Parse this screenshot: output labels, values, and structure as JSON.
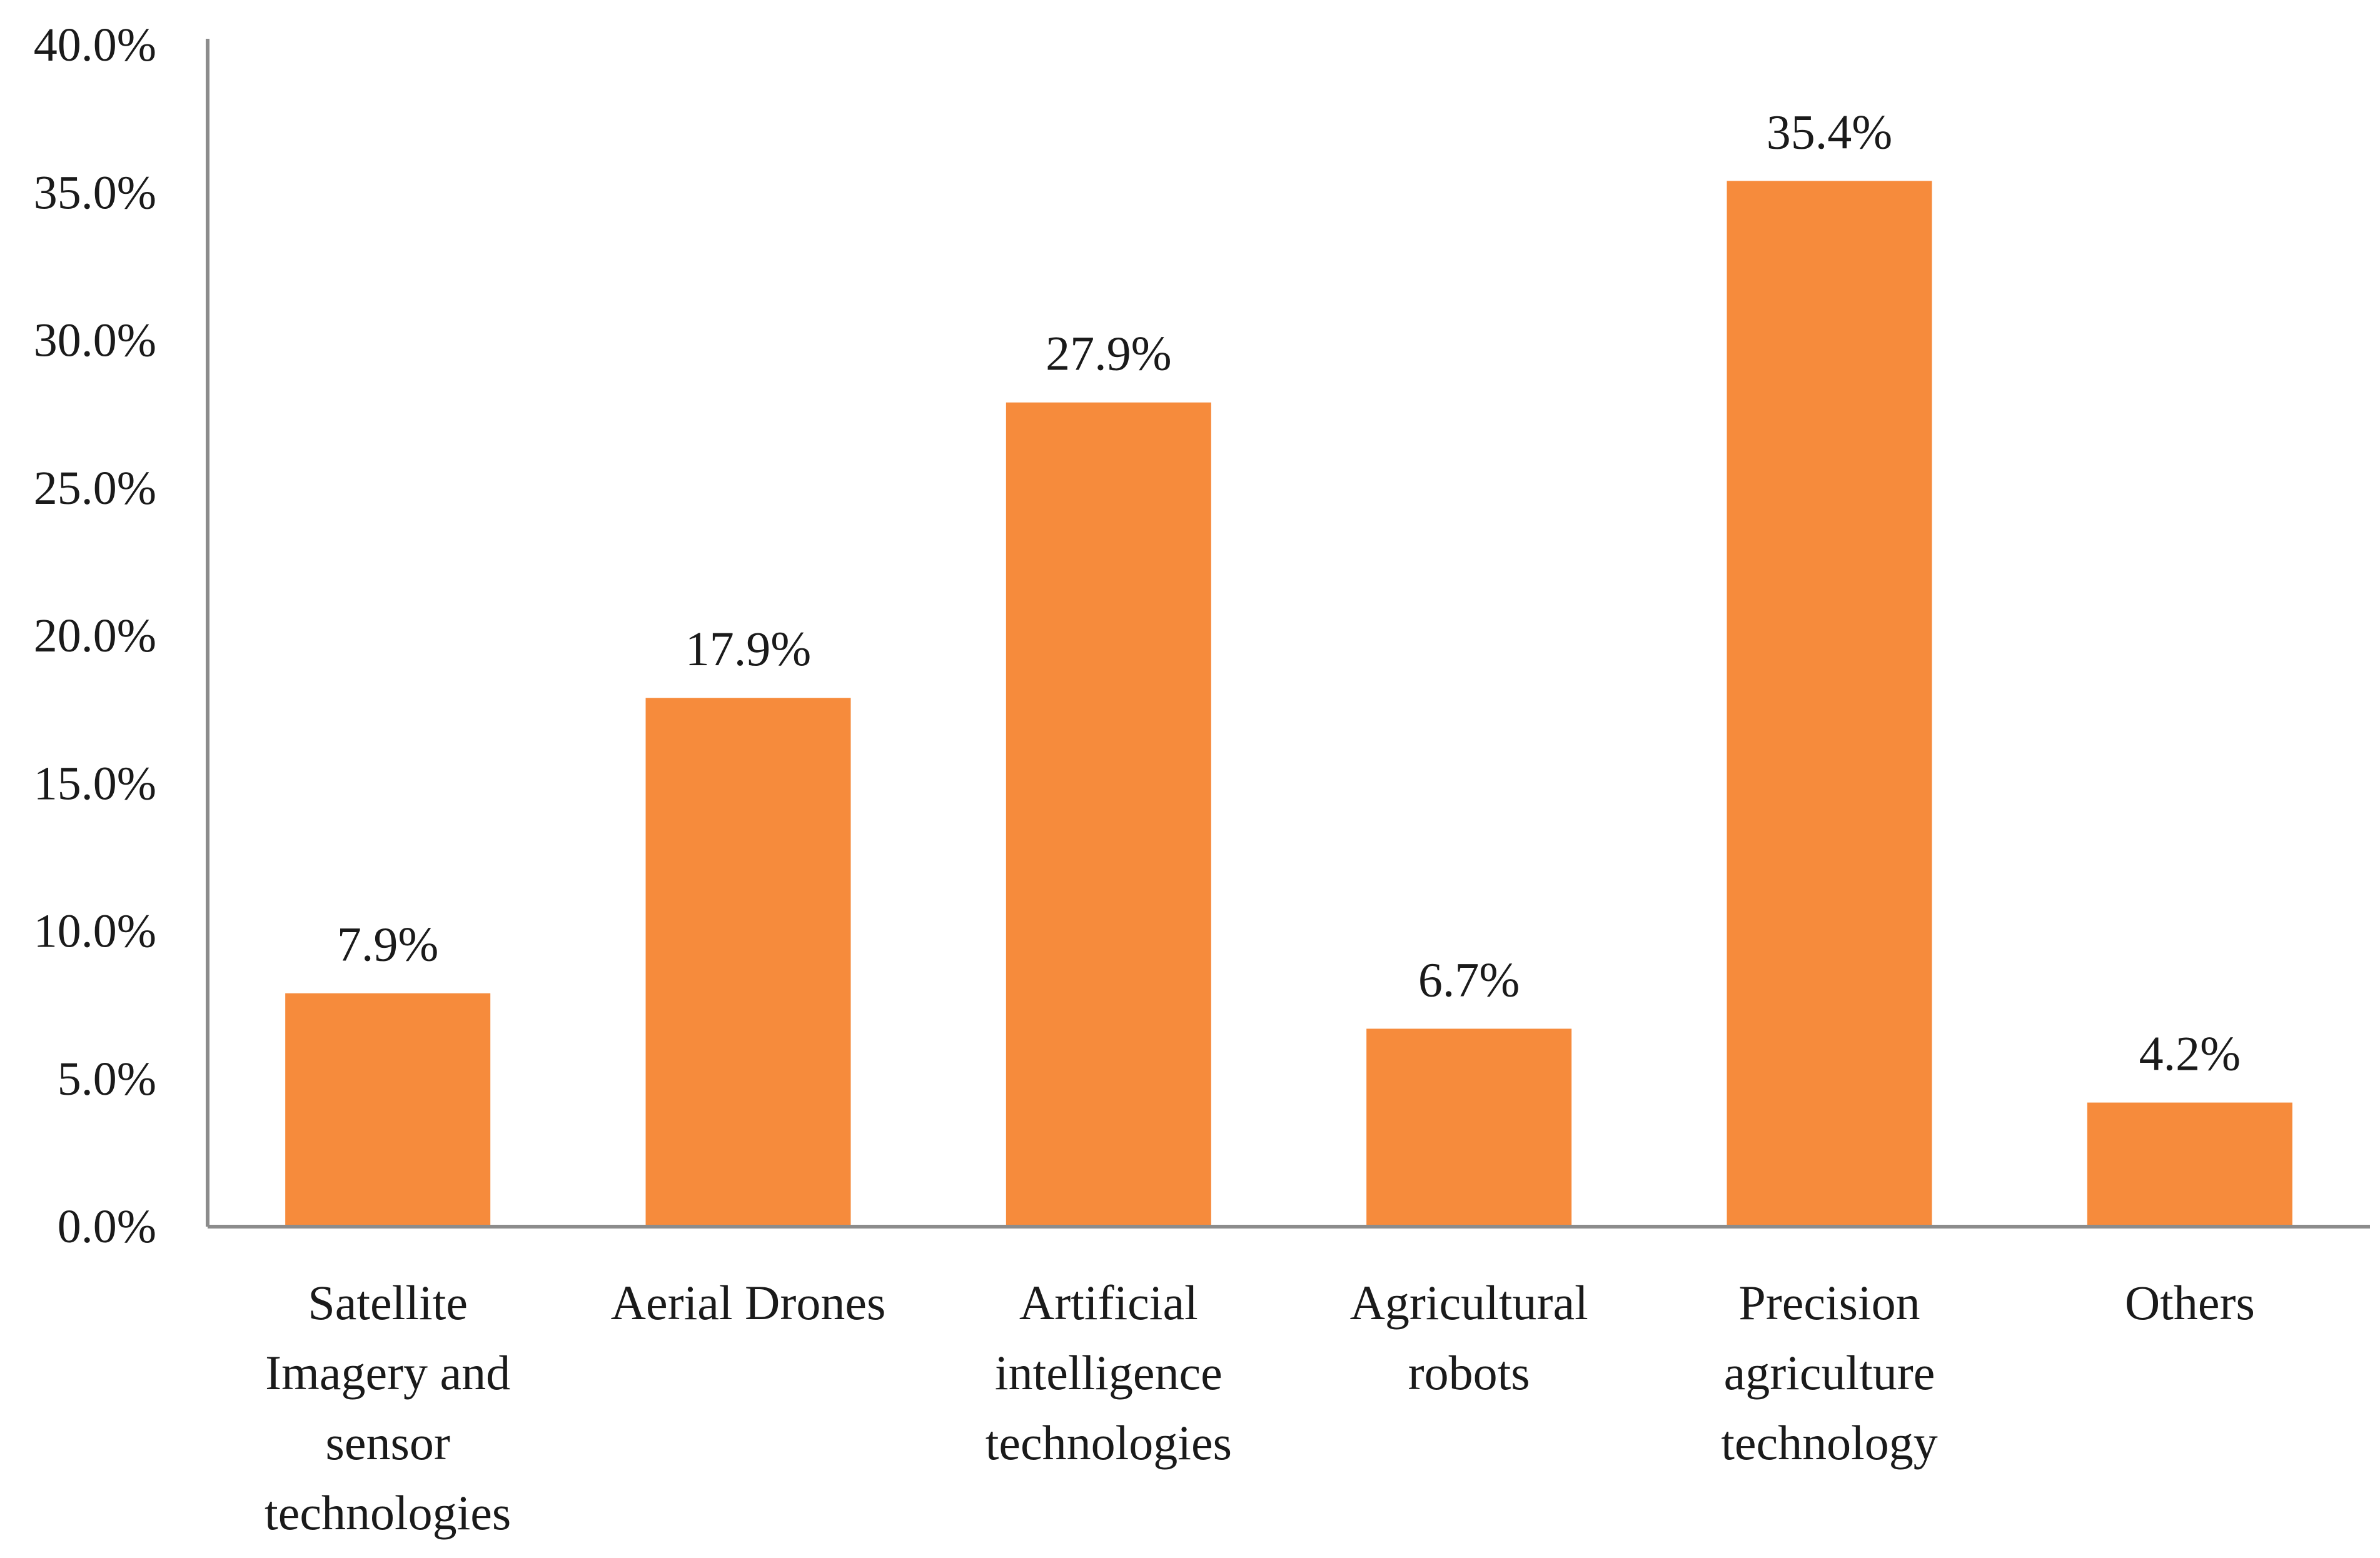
{
  "chart_data": {
    "type": "bar",
    "title": "",
    "xlabel": "",
    "ylabel": "",
    "categories": [
      "Satellite Imagery and sensor technologies",
      "Aerial Drones",
      "Artificial intelligence technologies",
      "Agricultural robots",
      "Precision agriculture technology",
      "Others"
    ],
    "category_lines": [
      [
        "Satellite",
        "Imagery and",
        "sensor",
        "technologies"
      ],
      [
        "Aerial Drones"
      ],
      [
        "Artificial",
        "intelligence",
        "technologies"
      ],
      [
        "Agricultural",
        "robots"
      ],
      [
        "Precision",
        "agriculture",
        "technology"
      ],
      [
        "Others"
      ]
    ],
    "values": [
      7.9,
      17.9,
      27.9,
      6.7,
      35.4,
      4.2
    ],
    "value_labels": [
      "7.9%",
      "17.9%",
      "27.9%",
      "6.7%",
      "35.4%",
      "4.2%"
    ],
    "yticks": [
      0,
      5,
      10,
      15,
      20,
      25,
      30,
      35,
      40
    ],
    "ytick_labels": [
      "0.0%",
      "5.0%",
      "10.0%",
      "15.0%",
      "20.0%",
      "25.0%",
      "30.0%",
      "35.0%",
      "40.0%"
    ],
    "ylim": [
      0,
      40
    ],
    "grid": false,
    "legend": "none",
    "bar_color": "#F68B3C",
    "axis_color": "#8C8C8C"
  }
}
